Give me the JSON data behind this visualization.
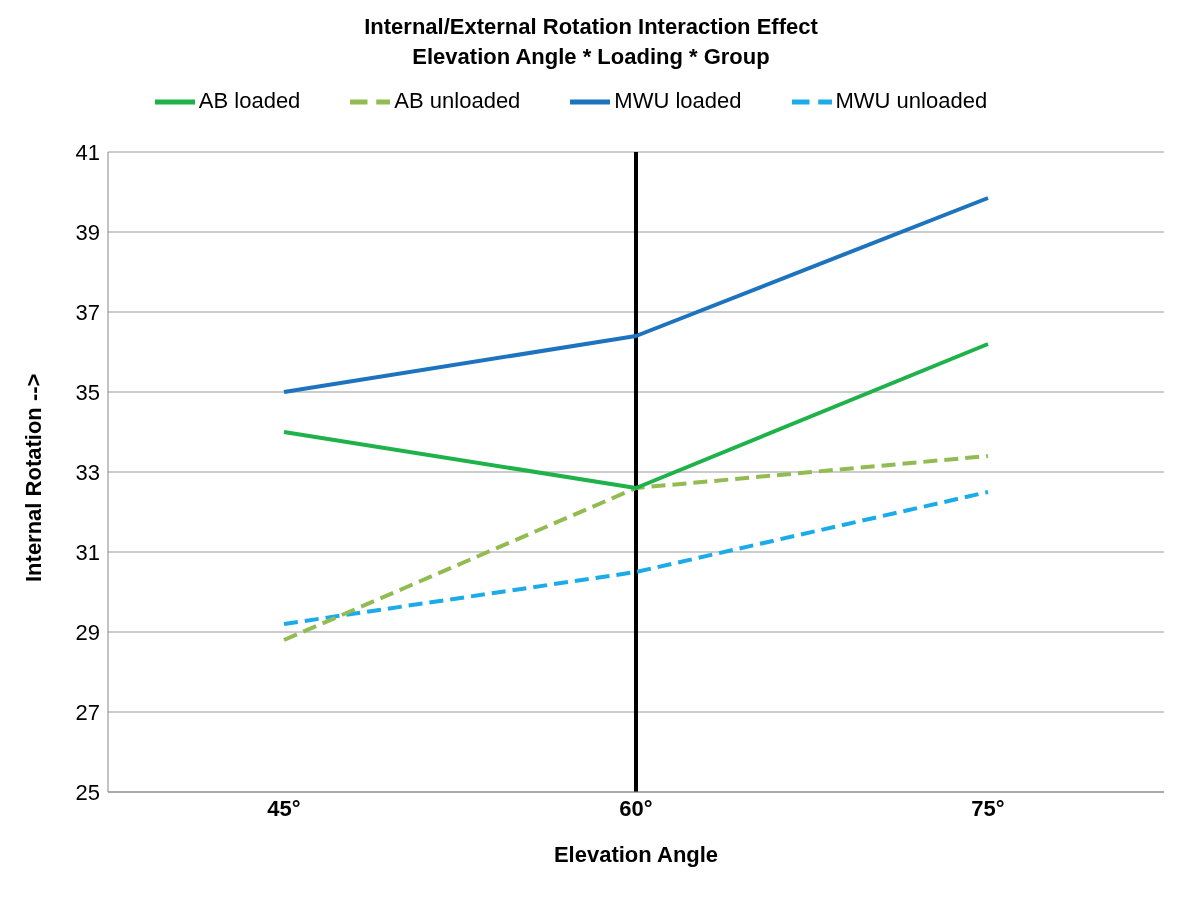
{
  "chart_data": {
    "type": "line",
    "title": "Internal/External Rotation Interaction Effect",
    "subtitle": "Elevation Angle * Loading * Group",
    "xlabel": "Elevation Angle",
    "ylabel": "Internal Rotation -->",
    "categories": [
      "45°",
      "60°",
      "75°"
    ],
    "series": [
      {
        "name": "MWU unloaded",
        "color": "#1aabe8",
        "line_style": "dashed",
        "values": [
          29.2,
          30.5,
          32.5
        ]
      },
      {
        "name": "MWU loaded",
        "color": "#1e73be",
        "line_style": "solid",
        "values": [
          35.0,
          36.4,
          39.85
        ]
      },
      {
        "name": "AB unloaded",
        "color": "#92bc52",
        "line_style": "dashed",
        "values": [
          28.8,
          32.6,
          33.4
        ]
      },
      {
        "name": "AB loaded",
        "color": "#1fb24a",
        "line_style": "solid",
        "values": [
          34.0,
          32.6,
          36.2
        ]
      }
    ],
    "ref_lines": [
      {
        "axis": "x",
        "value": "60°",
        "color": "#000000"
      }
    ],
    "ylim": [
      25,
      41
    ],
    "yticks": [
      25,
      27,
      29,
      31,
      33,
      35,
      37,
      39,
      41
    ],
    "grid": "y",
    "legend": "top",
    "marker": "none"
  }
}
